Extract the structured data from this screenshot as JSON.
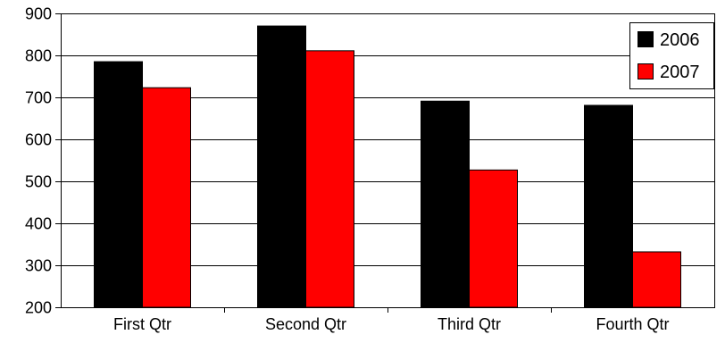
{
  "chart_data": {
    "type": "bar",
    "title": "",
    "xlabel": "",
    "ylabel": "",
    "categories": [
      "First Qtr",
      "Second Qtr",
      "Third Qtr",
      "Fourth Qtr"
    ],
    "series": [
      {
        "name": "2006",
        "values": [
          785,
          870,
          691,
          681
        ],
        "color": "#000000"
      },
      {
        "name": "2007",
        "values": [
          723,
          811,
          527,
          332
        ],
        "color": "#ff0000"
      }
    ],
    "ylim": [
      200,
      900
    ],
    "yticks": [
      "200",
      "300",
      "400",
      "500",
      "600",
      "700",
      "800",
      "900"
    ],
    "grid": true,
    "legend_position": "top-right"
  }
}
